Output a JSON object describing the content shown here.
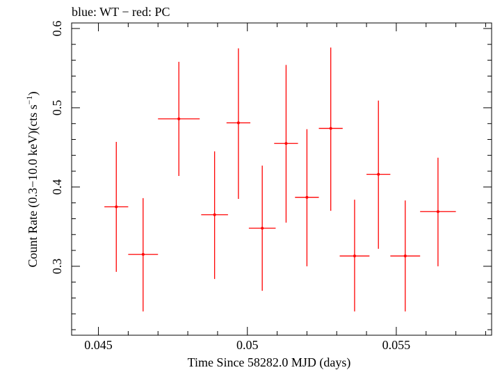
{
  "chart_data": {
    "type": "scatter",
    "title": "blue: WT − red: PC",
    "xlabel": "Time Since 58282.0 MJD (days)",
    "ylabel_main": "Count Rate (0.3−10.0 keV)(cts s",
    "ylabel_exp": "−1",
    "ylabel_close": ")",
    "xlim": [
      0.0441,
      0.0582
    ],
    "ylim": [
      0.213,
      0.607
    ],
    "x_ticks": [
      0.045,
      0.05,
      0.055
    ],
    "x_tick_labels": [
      "0.045",
      "0.05",
      "0.055"
    ],
    "y_ticks": [
      0.3,
      0.4,
      0.5,
      0.6
    ],
    "y_tick_labels": [
      "0.3",
      "0.4",
      "0.5",
      "0.6"
    ],
    "grid": false,
    "series": [
      {
        "color": "#ff0000",
        "points": [
          {
            "x": 0.0456,
            "y": 0.375,
            "xerr": 0.0004,
            "ylo": 0.293,
            "yhi": 0.457
          },
          {
            "x": 0.0465,
            "y": 0.315,
            "xerr": 0.0005,
            "ylo": 0.243,
            "yhi": 0.386
          },
          {
            "x": 0.0477,
            "y": 0.486,
            "xerr": 0.0007,
            "ylo": 0.414,
            "yhi": 0.558
          },
          {
            "x": 0.0489,
            "y": 0.365,
            "xerr": 0.00045,
            "ylo": 0.284,
            "yhi": 0.445
          },
          {
            "x": 0.0497,
            "y": 0.481,
            "xerr": 0.0004,
            "ylo": 0.385,
            "yhi": 0.575
          },
          {
            "x": 0.0505,
            "y": 0.348,
            "xerr": 0.00045,
            "ylo": 0.269,
            "yhi": 0.427
          },
          {
            "x": 0.0513,
            "y": 0.455,
            "xerr": 0.0004,
            "ylo": 0.355,
            "yhi": 0.554
          },
          {
            "x": 0.052,
            "y": 0.387,
            "xerr": 0.0004,
            "ylo": 0.3,
            "yhi": 0.473
          },
          {
            "x": 0.0528,
            "y": 0.474,
            "xerr": 0.0004,
            "ylo": 0.37,
            "yhi": 0.576
          },
          {
            "x": 0.0536,
            "y": 0.313,
            "xerr": 0.0005,
            "ylo": 0.243,
            "yhi": 0.384
          },
          {
            "x": 0.0544,
            "y": 0.416,
            "xerr": 0.0004,
            "ylo": 0.322,
            "yhi": 0.509
          },
          {
            "x": 0.0553,
            "y": 0.313,
            "xerr": 0.0005,
            "ylo": 0.243,
            "yhi": 0.383
          },
          {
            "x": 0.0564,
            "y": 0.369,
            "xerr": 0.0006,
            "ylo": 0.3,
            "yhi": 0.437
          }
        ]
      }
    ]
  }
}
